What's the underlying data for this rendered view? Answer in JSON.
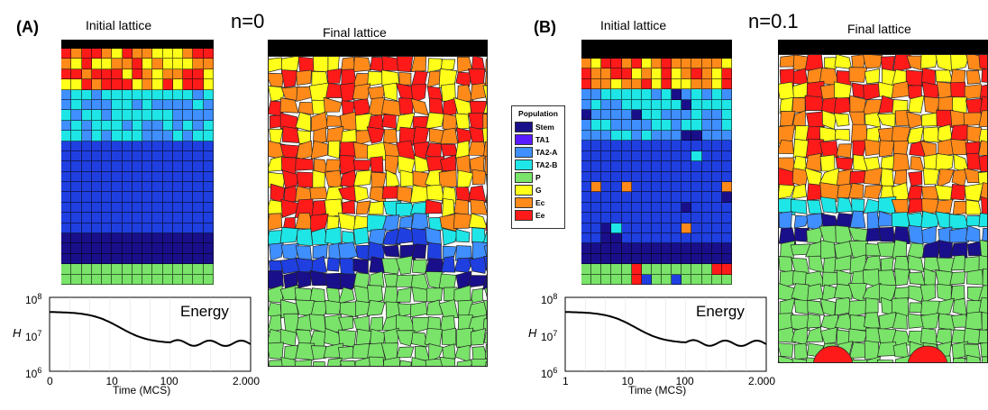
{
  "panel_a": {
    "label": "(A)",
    "n_label": "n=0",
    "initial_title": "Initial lattice",
    "final_title": "Final lattice",
    "energy": {
      "title": "Energy",
      "ylabel": "H",
      "xlabel": "Time (MCS)",
      "yticks": [
        "10",
        "10",
        "10"
      ],
      "yexps": [
        "8",
        "7",
        "6"
      ],
      "xticks": [
        "0",
        "10",
        "100",
        "2.000"
      ]
    }
  },
  "panel_b": {
    "label": "(B)",
    "n_label": "n=0.1",
    "initial_title": "Initial lattice",
    "final_title": "Final lattice",
    "energy": {
      "title": "Energy",
      "ylabel": "H",
      "xlabel": "Time (MCS)",
      "yticks": [
        "10",
        "10",
        "10"
      ],
      "yexps": [
        "8",
        "7",
        "6"
      ],
      "xticks": [
        "1",
        "10",
        "100",
        "2.000"
      ]
    }
  },
  "legend": {
    "title": "Population",
    "items": [
      {
        "label": "Stem",
        "color": "#1a0f8a"
      },
      {
        "label": "TA1",
        "color": "#5a1aff"
      },
      {
        "label": "TA2-A",
        "color": "#3f8fff"
      },
      {
        "label": "TA2-B",
        "color": "#1fe6e6"
      },
      {
        "label": "P",
        "color": "#7ae36a"
      },
      {
        "label": "G",
        "color": "#ffff1a"
      },
      {
        "label": "Ec",
        "color": "#ff8a1a"
      },
      {
        "label": "Ee",
        "color": "#ff1a1a"
      }
    ]
  }
}
